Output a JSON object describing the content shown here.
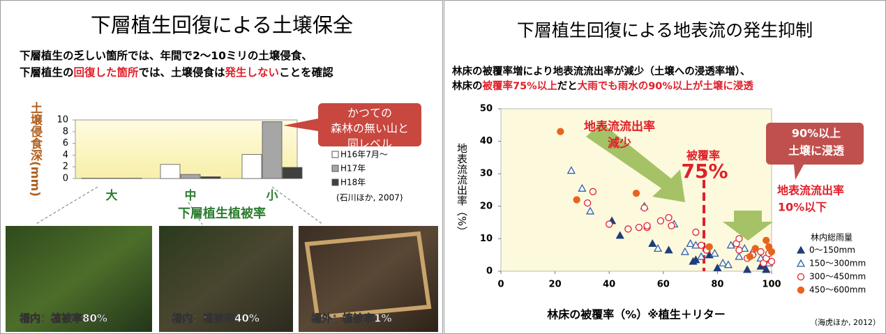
{
  "chart_data": [
    {
      "type": "bar",
      "title": "下層植生回復による土壌保全",
      "subtitle_lines": [
        [
          {
            "text": "下層植生の乏しい箇所では、年間で2～10ミリの土壌侵食、"
          }
        ],
        [
          {
            "text": "下層植生の"
          },
          {
            "text": "回復した箇所",
            "color": "#e0202a"
          },
          {
            "text": "では、土壌侵食は"
          },
          {
            "text": "発生しない",
            "color": "#e0202a"
          },
          {
            "text": "ことを確認"
          }
        ]
      ],
      "y_label": "土壌侵食深(mm)",
      "x_label": "下層植生植被率",
      "categories": [
        "大",
        "中",
        "小"
      ],
      "series": [
        {
          "name": "H16年7月～",
          "color": "#ffffff",
          "values": [
            0.05,
            2.4,
            4.1
          ]
        },
        {
          "name": "H17年",
          "color": "#a6a6a6",
          "values": [
            0.05,
            0.7,
            9.7
          ]
        },
        {
          "name": "H18年",
          "color": "#404040",
          "values": [
            0.05,
            0.3,
            1.9
          ]
        }
      ],
      "ylim": [
        0,
        10
      ],
      "yticks": [
        0,
        2,
        4,
        6,
        8,
        10
      ],
      "callout": [
        "かつての",
        "森林の無い山と",
        "同レベル"
      ],
      "source": "(石川ほか, 2007)",
      "photos": [
        "柵内：植被率80%",
        "柵内：植被率40%",
        "柵外：植被率1%"
      ]
    },
    {
      "type": "scatter",
      "title": "下層植生回復による地表流の発生抑制",
      "subtitle_lines": [
        [
          {
            "text": "林床の被覆率増により地表流流出率が減少（土壌への浸透率増）、"
          }
        ],
        [
          {
            "text": "林床の"
          },
          {
            "text": "被覆率75%以上",
            "color": "#e0202a"
          },
          {
            "text": "だと"
          },
          {
            "text": "大雨でも雨水の90%以上が土壌に浸透",
            "color": "#e0202a"
          }
        ]
      ],
      "x_label": "林床の被覆率（%）※植生＋リター",
      "y_label": "地表流流出率（%）",
      "xlim": [
        0,
        100
      ],
      "xticks": [
        0,
        20,
        40,
        60,
        80,
        100
      ],
      "ylim": [
        0,
        50
      ],
      "yticks": [
        0,
        10,
        20,
        30,
        40,
        50
      ],
      "legend_title": "林内総雨量",
      "series": [
        {
          "name": "0～150mm",
          "color": "#1f3d7a",
          "marker": "triangle",
          "filled": true,
          "x": [
            41,
            44,
            56,
            62,
            71,
            72,
            77,
            80,
            91,
            96,
            97,
            98
          ],
          "values": [
            15.5,
            11,
            8.5,
            6.5,
            3,
            3.5,
            5,
            1,
            0.5,
            1.5,
            2,
            0.5
          ]
        },
        {
          "name": "150～300mm",
          "color": "#2e5fa8",
          "marker": "triangle",
          "filled": false,
          "x": [
            26,
            30,
            33,
            53,
            64,
            58,
            68,
            70,
            72,
            74,
            76,
            79,
            82,
            84,
            85,
            88,
            90,
            93,
            96,
            98,
            99
          ],
          "values": [
            31,
            25.5,
            18.5,
            20,
            14.5,
            7,
            6,
            8.5,
            8,
            4.5,
            7,
            5.5,
            2.5,
            2,
            8,
            4.5,
            7,
            6,
            4,
            3,
            2.5
          ]
        },
        {
          "name": "300～450mm",
          "color": "#e0202a",
          "marker": "circle",
          "filled": false,
          "x": [
            32,
            34,
            40,
            47,
            51,
            53,
            54,
            54,
            59,
            62,
            63,
            72,
            74,
            76,
            87,
            88,
            88,
            91,
            93,
            96,
            97,
            98,
            99,
            100
          ],
          "values": [
            21,
            24.5,
            14.5,
            13,
            13.5,
            19.5,
            13.5,
            14,
            15.5,
            16.5,
            14,
            12,
            8,
            6.5,
            8.5,
            6.5,
            10,
            4,
            5,
            6,
            2.5,
            4,
            5.5,
            3
          ]
        },
        {
          "name": "450～600mm",
          "color": "#e8641e",
          "marker": "circle",
          "filled": true,
          "x": [
            22,
            28,
            50,
            77,
            92,
            94,
            98,
            99,
            100
          ],
          "values": [
            43,
            22,
            24,
            7.5,
            4.5,
            7,
            9.5,
            7.5,
            6
          ]
        }
      ],
      "ref_x": 75,
      "annotations": [
        [
          "地表流流出率",
          "減少"
        ],
        [
          "被覆率",
          "75%"
        ],
        [
          "90%以上",
          "土壌に浸透"
        ],
        [
          "地表流流出率",
          "10%以下"
        ]
      ],
      "source": "（海虎ほか, 2012）"
    }
  ]
}
